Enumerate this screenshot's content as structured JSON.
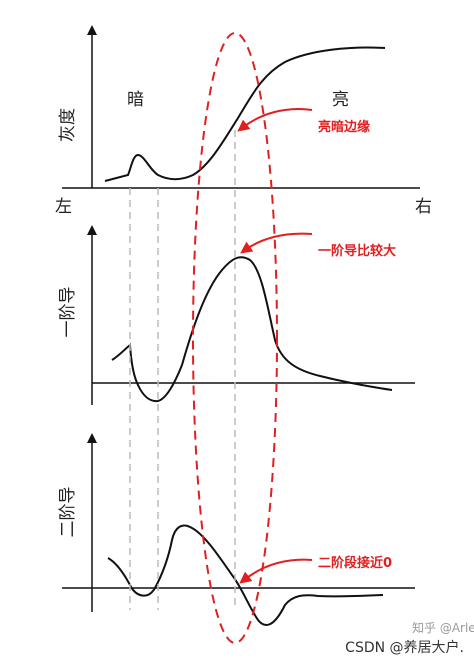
{
  "panels": {
    "top": {
      "ylabel": "灰度",
      "left_region": "暗",
      "right_region": "亮",
      "x_left": "左",
      "x_right": "右"
    },
    "middle": {
      "ylabel": "一阶导"
    },
    "bottom": {
      "ylabel": "二阶导"
    }
  },
  "annotations": {
    "edge": "亮暗边缘",
    "first_derivative": "一阶导比较大",
    "second_derivative": "二阶段接近0"
  },
  "footer": {
    "watermark": "知乎 @Arler",
    "credit": "CSDN @养居大户."
  },
  "colors": {
    "curve": "#111111",
    "axis": "#111111",
    "annotation": "#e02020",
    "guide": "#bbbbbb"
  }
}
